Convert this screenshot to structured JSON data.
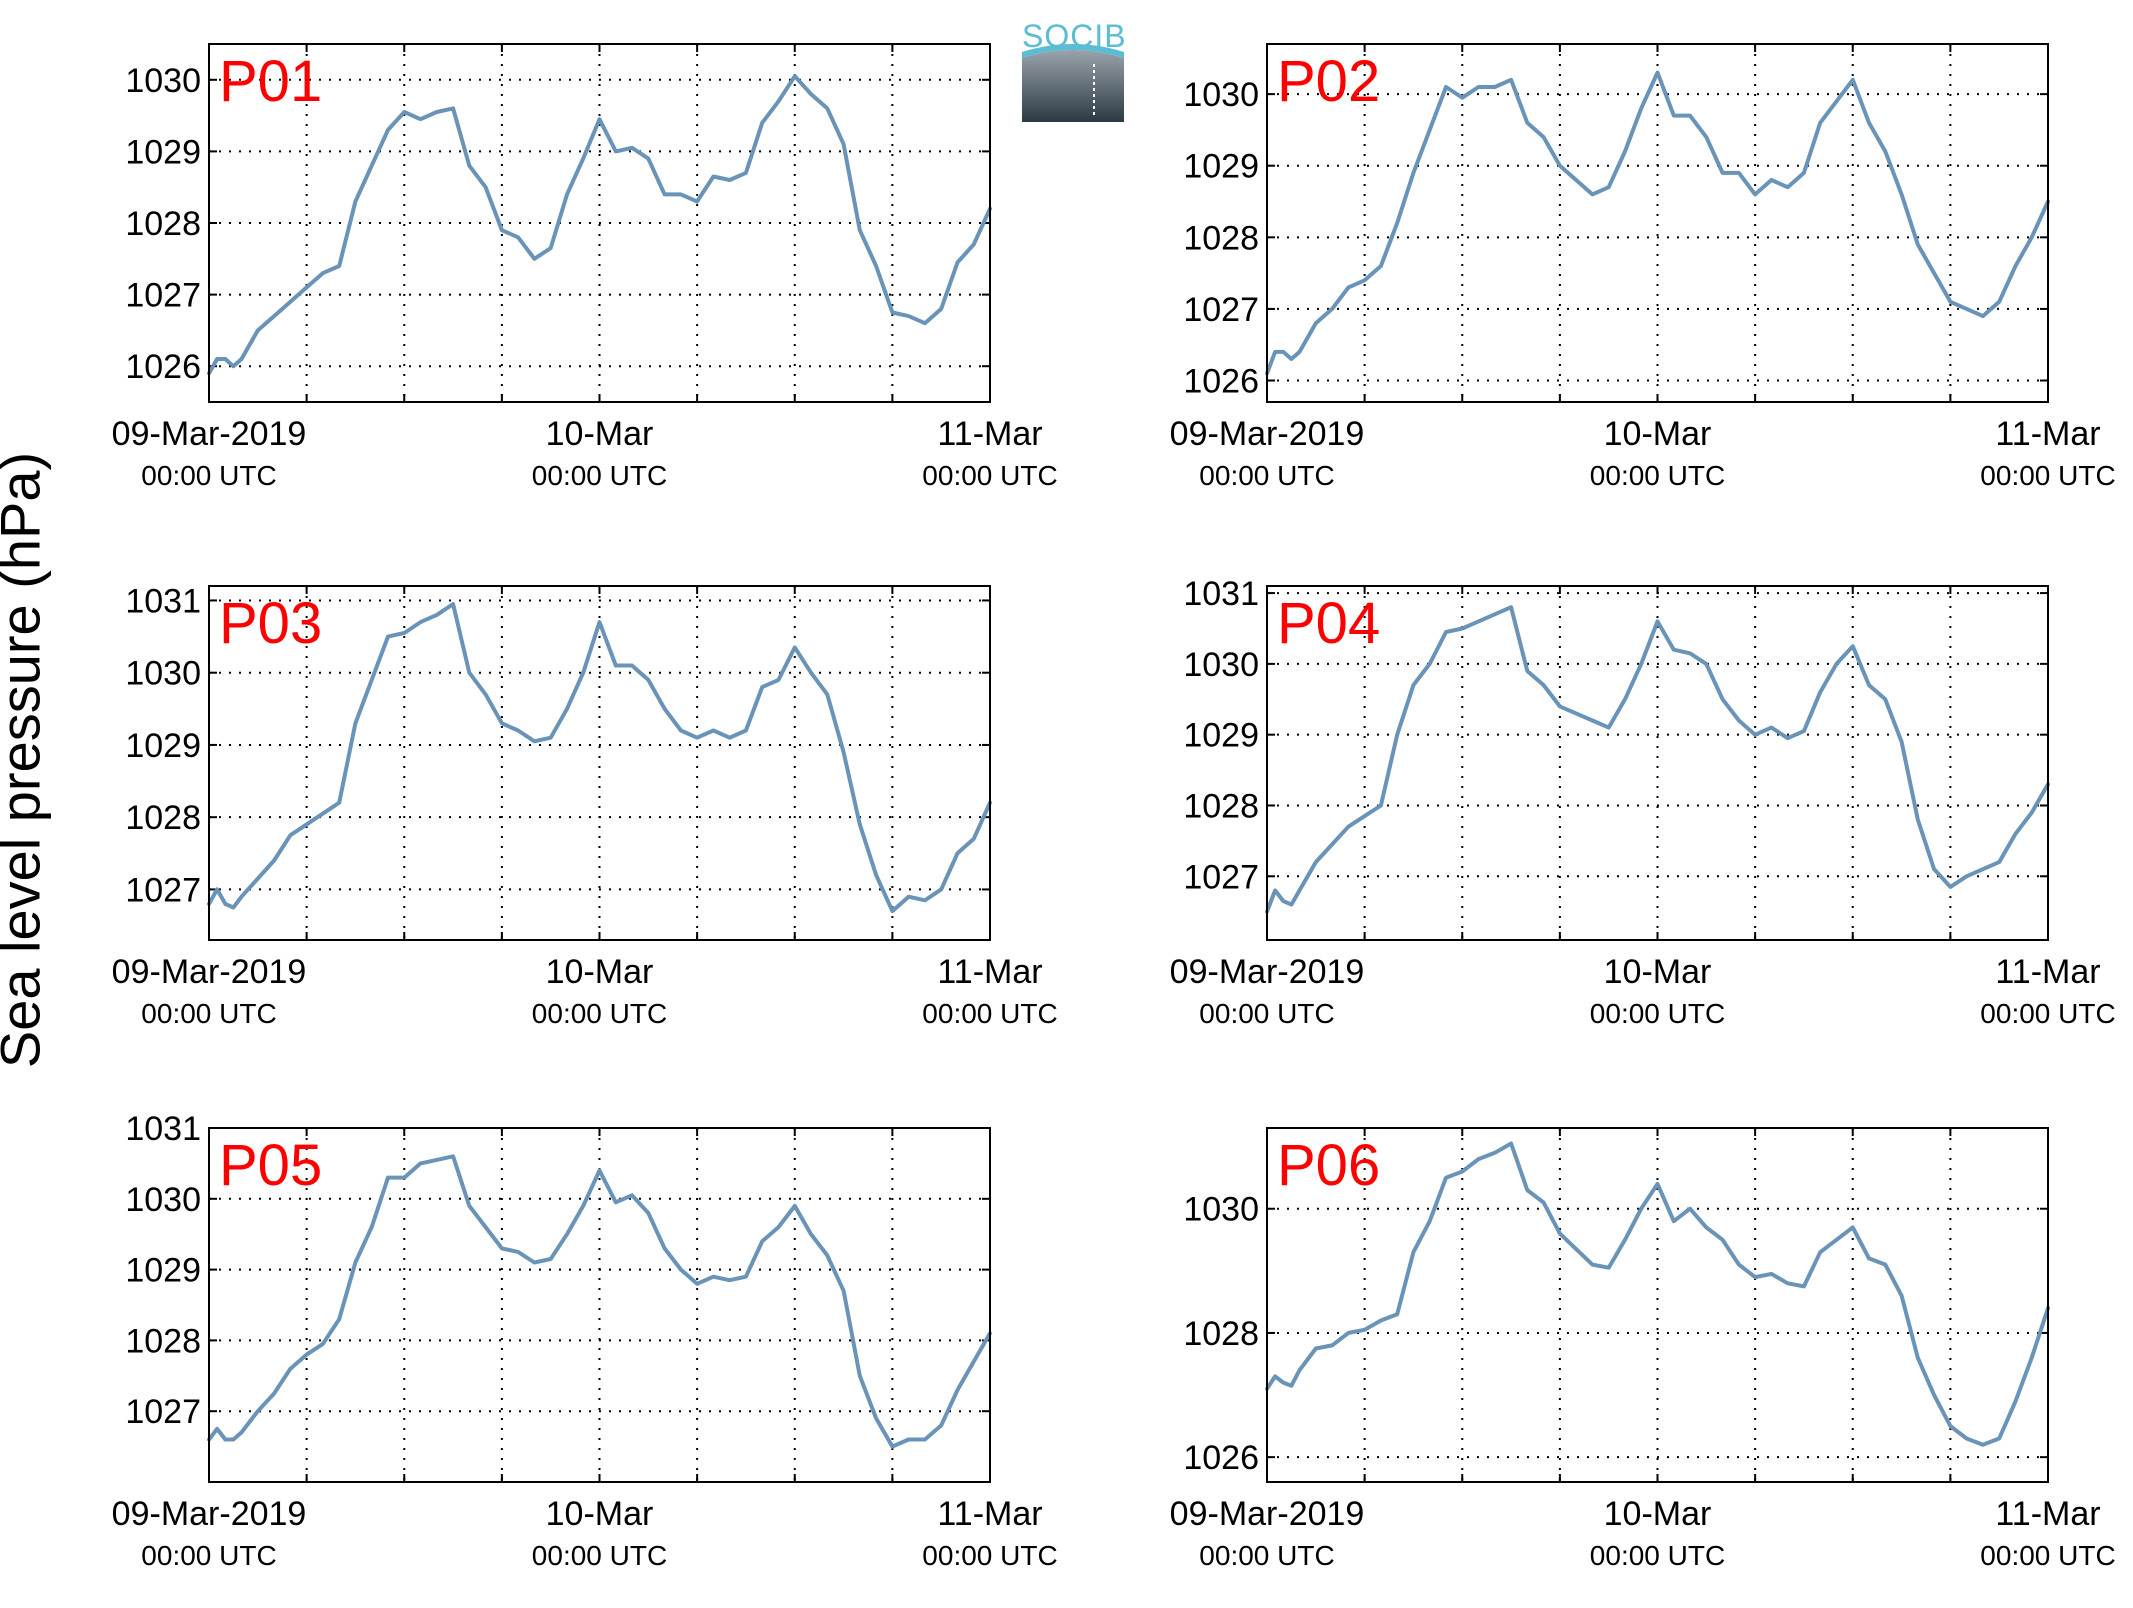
{
  "figure": {
    "ylabel": "Sea level pressure (hPa)",
    "logo_text": "SOCIB",
    "colors": {
      "line": "#6a93b8",
      "panel_label": "#ff0000",
      "grid": "#000000"
    }
  },
  "chart_data": [
    {
      "type": "line",
      "panel": "P01",
      "x_range_hours": [
        0,
        48
      ],
      "ylim": [
        1025.5,
        1030.5
      ],
      "yticks": [
        1026,
        1027,
        1028,
        1029,
        1030
      ],
      "xtick_labels": [
        [
          "09-Mar-2019",
          "00:00 UTC"
        ],
        [
          "10-Mar",
          "00:00 UTC"
        ],
        [
          "11-Mar",
          "00:00 UTC"
        ]
      ],
      "grid": true,
      "series": [
        {
          "x_hours": [
            0,
            0.5,
            1,
            1.5,
            2,
            3,
            4,
            5,
            6,
            7,
            8,
            9,
            10,
            11,
            12,
            13,
            14,
            15,
            16,
            17,
            18,
            19,
            20,
            21,
            22,
            23,
            24,
            25,
            26,
            27,
            28,
            29,
            30,
            31,
            32,
            33,
            34,
            35,
            36,
            37,
            38,
            39,
            40,
            41,
            42,
            43,
            44,
            45,
            46,
            47,
            48
          ],
          "values": [
            1025.9,
            1026.1,
            1026.1,
            1026.0,
            1026.1,
            1026.5,
            1026.7,
            1026.9,
            1027.1,
            1027.3,
            1027.4,
            1028.3,
            1028.8,
            1029.3,
            1029.55,
            1029.45,
            1029.55,
            1029.6,
            1028.8,
            1028.5,
            1027.9,
            1027.8,
            1027.5,
            1027.65,
            1028.4,
            1028.9,
            1029.45,
            1029.0,
            1029.05,
            1028.9,
            1028.4,
            1028.4,
            1028.3,
            1028.65,
            1028.6,
            1028.7,
            1029.4,
            1029.7,
            1030.05,
            1029.8,
            1029.6,
            1029.1,
            1027.9,
            1027.4,
            1026.75,
            1026.7,
            1026.6,
            1026.8,
            1027.45,
            1027.7,
            1028.2
          ]
        }
      ]
    },
    {
      "type": "line",
      "panel": "P02",
      "x_range_hours": [
        0,
        48
      ],
      "ylim": [
        1025.7,
        1030.7
      ],
      "yticks": [
        1026,
        1027,
        1028,
        1029,
        1030
      ],
      "xtick_labels": [
        [
          "09-Mar-2019",
          "00:00 UTC"
        ],
        [
          "10-Mar",
          "00:00 UTC"
        ],
        [
          "11-Mar",
          "00:00 UTC"
        ]
      ],
      "grid": true,
      "series": [
        {
          "x_hours": [
            0,
            0.5,
            1,
            1.5,
            2,
            3,
            4,
            5,
            6,
            7,
            8,
            9,
            10,
            11,
            12,
            13,
            14,
            15,
            16,
            17,
            18,
            19,
            20,
            21,
            22,
            23,
            24,
            25,
            26,
            27,
            28,
            29,
            30,
            31,
            32,
            33,
            34,
            35,
            36,
            37,
            38,
            39,
            40,
            41,
            42,
            43,
            44,
            45,
            46,
            47,
            48
          ],
          "values": [
            1026.1,
            1026.4,
            1026.4,
            1026.3,
            1026.4,
            1026.8,
            1027.0,
            1027.3,
            1027.4,
            1027.6,
            1028.2,
            1028.9,
            1029.5,
            1030.1,
            1029.95,
            1030.1,
            1030.1,
            1030.2,
            1029.6,
            1029.4,
            1029.0,
            1028.8,
            1028.6,
            1028.7,
            1029.2,
            1029.8,
            1030.3,
            1029.7,
            1029.7,
            1029.4,
            1028.9,
            1028.9,
            1028.6,
            1028.8,
            1028.7,
            1028.9,
            1029.6,
            1029.9,
            1030.2,
            1029.6,
            1029.2,
            1028.6,
            1027.9,
            1027.5,
            1027.1,
            1027.0,
            1026.9,
            1027.1,
            1027.6,
            1028.0,
            1028.5
          ]
        }
      ]
    },
    {
      "type": "line",
      "panel": "P03",
      "x_range_hours": [
        0,
        48
      ],
      "ylim": [
        1026.3,
        1031.2
      ],
      "yticks": [
        1027,
        1028,
        1029,
        1030,
        1031
      ],
      "xtick_labels": [
        [
          "09-Mar-2019",
          "00:00 UTC"
        ],
        [
          "10-Mar",
          "00:00 UTC"
        ],
        [
          "11-Mar",
          "00:00 UTC"
        ]
      ],
      "grid": true,
      "series": [
        {
          "x_hours": [
            0,
            0.5,
            1,
            1.5,
            2,
            3,
            4,
            5,
            6,
            7,
            8,
            9,
            10,
            11,
            12,
            13,
            14,
            15,
            16,
            17,
            18,
            19,
            20,
            21,
            22,
            23,
            24,
            25,
            26,
            27,
            28,
            29,
            30,
            31,
            32,
            33,
            34,
            35,
            36,
            37,
            38,
            39,
            40,
            41,
            42,
            43,
            44,
            45,
            46,
            47,
            48
          ],
          "values": [
            1026.8,
            1027.0,
            1026.8,
            1026.75,
            1026.9,
            1027.15,
            1027.4,
            1027.75,
            1027.9,
            1028.05,
            1028.2,
            1029.3,
            1029.9,
            1030.5,
            1030.55,
            1030.7,
            1030.8,
            1030.95,
            1030.0,
            1029.7,
            1029.3,
            1029.2,
            1029.05,
            1029.1,
            1029.5,
            1030.0,
            1030.7,
            1030.1,
            1030.1,
            1029.9,
            1029.5,
            1029.2,
            1029.1,
            1029.2,
            1029.1,
            1029.2,
            1029.8,
            1029.9,
            1030.35,
            1030.0,
            1029.7,
            1028.9,
            1027.9,
            1027.2,
            1026.7,
            1026.9,
            1026.85,
            1027.0,
            1027.5,
            1027.7,
            1028.2
          ]
        }
      ]
    },
    {
      "type": "line",
      "panel": "P04",
      "x_range_hours": [
        0,
        48
      ],
      "ylim": [
        1026.1,
        1031.1
      ],
      "yticks": [
        1027,
        1028,
        1029,
        1030,
        1031
      ],
      "xtick_labels": [
        [
          "09-Mar-2019",
          "00:00 UTC"
        ],
        [
          "10-Mar",
          "00:00 UTC"
        ],
        [
          "11-Mar",
          "00:00 UTC"
        ]
      ],
      "grid": true,
      "series": [
        {
          "x_hours": [
            0,
            0.5,
            1,
            1.5,
            2,
            3,
            4,
            5,
            6,
            7,
            8,
            9,
            10,
            11,
            12,
            13,
            14,
            15,
            16,
            17,
            18,
            19,
            20,
            21,
            22,
            23,
            24,
            25,
            26,
            27,
            28,
            29,
            30,
            31,
            32,
            33,
            34,
            35,
            36,
            37,
            38,
            39,
            40,
            41,
            42,
            43,
            44,
            45,
            46,
            47,
            48
          ],
          "values": [
            1026.5,
            1026.8,
            1026.65,
            1026.6,
            1026.8,
            1027.2,
            1027.45,
            1027.7,
            1027.85,
            1028.0,
            1029.0,
            1029.7,
            1030.0,
            1030.45,
            1030.5,
            1030.6,
            1030.7,
            1030.8,
            1029.9,
            1029.7,
            1029.4,
            1029.3,
            1029.2,
            1029.1,
            1029.5,
            1030.0,
            1030.6,
            1030.2,
            1030.15,
            1030.0,
            1029.5,
            1029.2,
            1029.0,
            1029.1,
            1028.95,
            1029.05,
            1029.6,
            1030.0,
            1030.25,
            1029.7,
            1029.5,
            1028.9,
            1027.8,
            1027.1,
            1026.85,
            1027.0,
            1027.1,
            1027.2,
            1027.6,
            1027.9,
            1028.3
          ]
        }
      ]
    },
    {
      "type": "line",
      "panel": "P05",
      "x_range_hours": [
        0,
        48
      ],
      "ylim": [
        1026.0,
        1031.0
      ],
      "yticks": [
        1027,
        1028,
        1029,
        1030,
        1031
      ],
      "xtick_labels": [
        [
          "09-Mar-2019",
          "00:00 UTC"
        ],
        [
          "10-Mar",
          "00:00 UTC"
        ],
        [
          "11-Mar",
          "00:00 UTC"
        ]
      ],
      "grid": true,
      "series": [
        {
          "x_hours": [
            0,
            0.5,
            1,
            1.5,
            2,
            3,
            4,
            5,
            6,
            7,
            8,
            9,
            10,
            11,
            12,
            13,
            14,
            15,
            16,
            17,
            18,
            19,
            20,
            21,
            22,
            23,
            24,
            25,
            26,
            27,
            28,
            29,
            30,
            31,
            32,
            33,
            34,
            35,
            36,
            37,
            38,
            39,
            40,
            41,
            42,
            43,
            44,
            45,
            46,
            47,
            48
          ],
          "values": [
            1026.6,
            1026.75,
            1026.6,
            1026.6,
            1026.7,
            1027.0,
            1027.25,
            1027.6,
            1027.8,
            1027.95,
            1028.3,
            1029.1,
            1029.6,
            1030.3,
            1030.3,
            1030.5,
            1030.55,
            1030.6,
            1029.9,
            1029.6,
            1029.3,
            1029.25,
            1029.1,
            1029.15,
            1029.5,
            1029.9,
            1030.4,
            1029.95,
            1030.05,
            1029.8,
            1029.3,
            1029.0,
            1028.8,
            1028.9,
            1028.85,
            1028.9,
            1029.4,
            1029.6,
            1029.9,
            1029.5,
            1029.2,
            1028.7,
            1027.5,
            1026.9,
            1026.5,
            1026.6,
            1026.6,
            1026.8,
            1027.3,
            1027.7,
            1028.1
          ]
        }
      ]
    },
    {
      "type": "line",
      "panel": "P06",
      "x_range_hours": [
        0,
        48
      ],
      "ylim": [
        1025.6,
        1031.3
      ],
      "yticks": [
        1026,
        1028,
        1030
      ],
      "xtick_labels": [
        [
          "09-Mar-2019",
          "00:00 UTC"
        ],
        [
          "10-Mar",
          "00:00 UTC"
        ],
        [
          "11-Mar",
          "00:00 UTC"
        ]
      ],
      "grid": true,
      "series": [
        {
          "x_hours": [
            0,
            0.5,
            1,
            1.5,
            2,
            3,
            4,
            5,
            6,
            7,
            8,
            9,
            10,
            11,
            12,
            13,
            14,
            15,
            16,
            17,
            18,
            19,
            20,
            21,
            22,
            23,
            24,
            25,
            26,
            27,
            28,
            29,
            30,
            31,
            32,
            33,
            34,
            35,
            36,
            37,
            38,
            39,
            40,
            41,
            42,
            43,
            44,
            45,
            46,
            47,
            48
          ],
          "values": [
            1027.1,
            1027.3,
            1027.2,
            1027.15,
            1027.4,
            1027.75,
            1027.8,
            1028.0,
            1028.05,
            1028.2,
            1028.3,
            1029.3,
            1029.8,
            1030.5,
            1030.6,
            1030.8,
            1030.9,
            1031.05,
            1030.3,
            1030.1,
            1029.6,
            1029.35,
            1029.1,
            1029.05,
            1029.5,
            1030.0,
            1030.4,
            1029.8,
            1030.0,
            1029.7,
            1029.5,
            1029.1,
            1028.9,
            1028.95,
            1028.8,
            1028.75,
            1029.3,
            1029.5,
            1029.7,
            1029.2,
            1029.1,
            1028.6,
            1027.6,
            1027.0,
            1026.5,
            1026.3,
            1026.2,
            1026.3,
            1026.9,
            1027.6,
            1028.4
          ]
        }
      ]
    }
  ]
}
